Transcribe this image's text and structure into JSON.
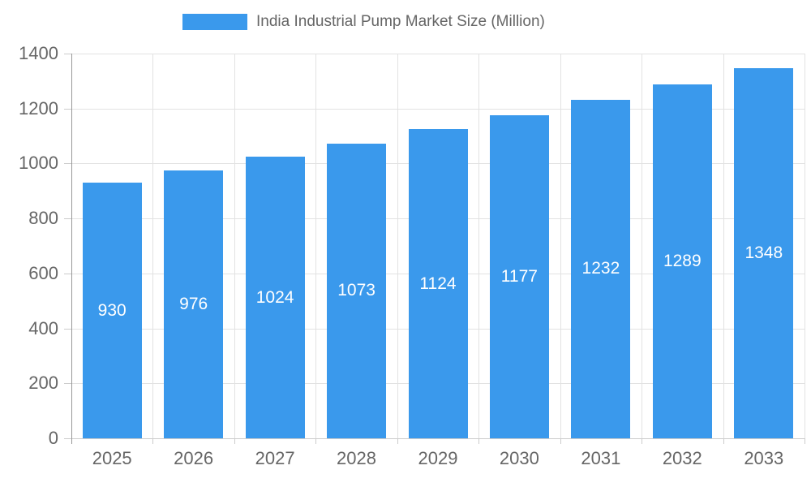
{
  "chart_data": {
    "type": "bar",
    "title": "India Industrial Pump Market Size (Million)",
    "series_name": "India Industrial Pump Market Size (Million)",
    "legend_position": "top",
    "categories": [
      "2025",
      "2026",
      "2027",
      "2028",
      "2029",
      "2030",
      "2031",
      "2032",
      "2033"
    ],
    "values": [
      930,
      976,
      1024,
      1073,
      1124,
      1177,
      1232,
      1289,
      1348
    ],
    "xlabel": "",
    "ylabel": "",
    "ylim": [
      0,
      1400
    ],
    "yticks": [
      0,
      200,
      400,
      600,
      800,
      1000,
      1200,
      1400
    ],
    "grid": true,
    "value_label_position": "inside-center",
    "colors": {
      "bar": "#3A99EC",
      "grid": "#e2e2e2",
      "axis": "#999999",
      "tick": "#cccccc",
      "axis_text": "#666666",
      "value_text": "#ffffff",
      "background": "#ffffff"
    }
  }
}
